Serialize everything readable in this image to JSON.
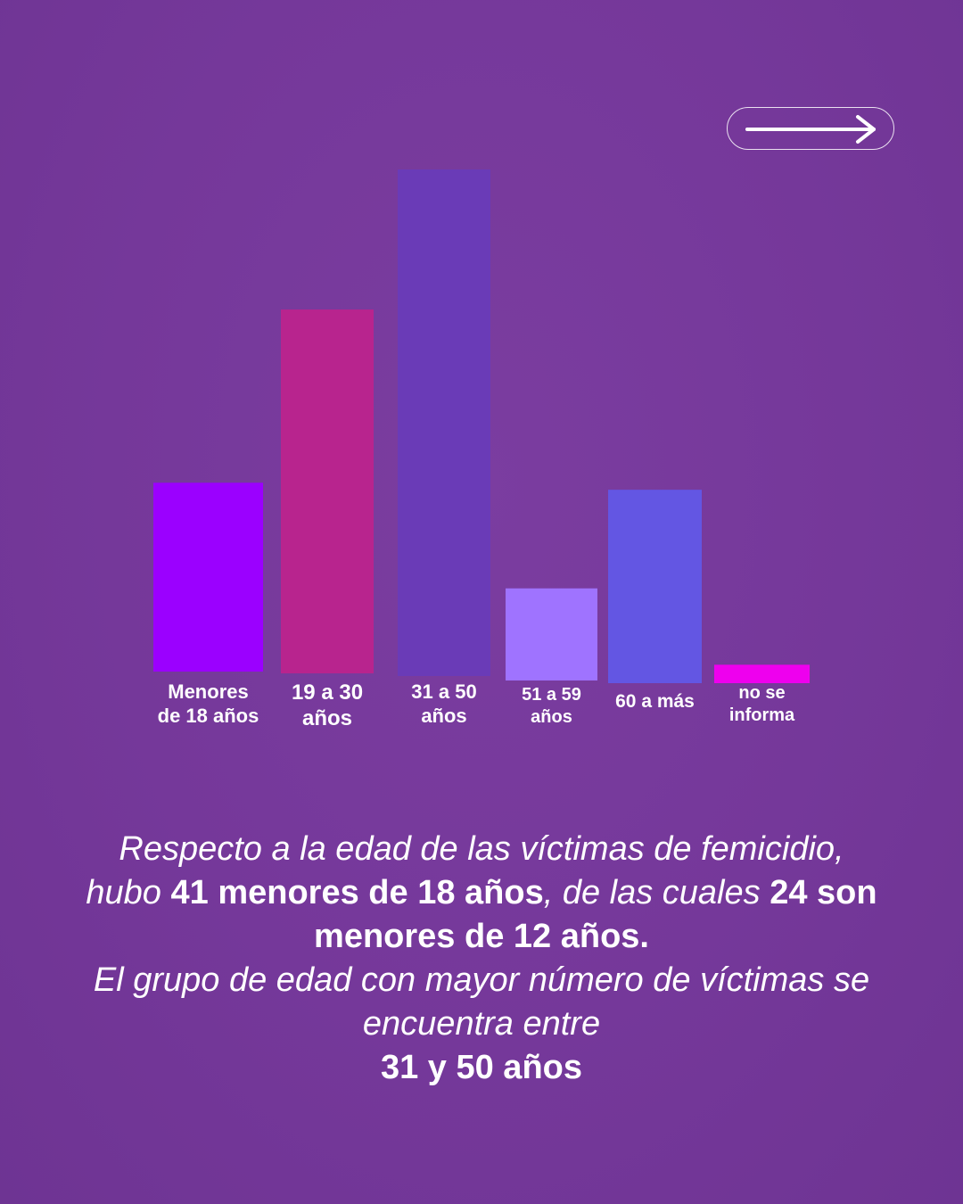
{
  "nav": {
    "next_icon": "arrow-right-icon"
  },
  "colors": {
    "background": "#75389a",
    "text": "#ffffff"
  },
  "chart_data": {
    "type": "bar",
    "title": "",
    "xlabel": "",
    "ylabel": "",
    "categories": [
      "Menores\nde 18 años",
      "19 a 30\naños",
      "31 a 50\naños",
      "51 a 59\naños",
      "60 a más",
      "no se\ninforma"
    ],
    "values": [
      41,
      79,
      110,
      20,
      42,
      4
    ],
    "colors": [
      "#9b00ff",
      "#b8248e",
      "#6a3bb7",
      "#9f73ff",
      "#6356e3",
      "#ee00ee"
    ],
    "ylim": [
      0,
      110
    ],
    "grid": false,
    "legend": "none"
  },
  "caption": {
    "p1": "Respecto a la edad de las víctimas de femicidio, hubo ",
    "b1": "41 menores de 18 años",
    "p2": ", de las cuales ",
    "b2": "24 son menores de 12 años.",
    "p3": "El grupo de edad con mayor número de víctimas se encuentra entre",
    "b3": "31 y 50 años"
  }
}
